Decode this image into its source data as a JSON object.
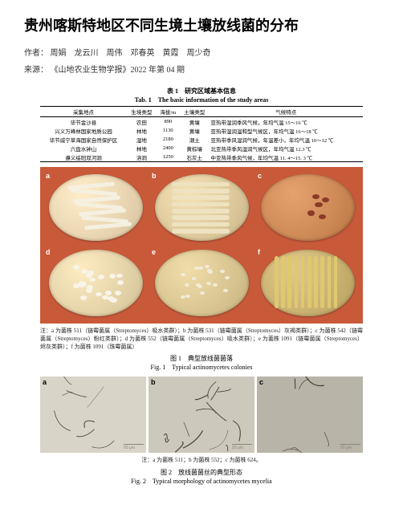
{
  "title": "贵州喀斯特地区不同生境土壤放线菌的分布",
  "authors_label": "作者：",
  "authors": "周娟　龙云川　周伟　邓春英　黄霞　周少奇",
  "source_label": "来源：",
  "source": "《山地农业生物学报》2022 年第 04 期",
  "table1": {
    "title_cn": "表 1　研究区域基本信息",
    "title_en": "Tab. 1　The basic information of the study areas",
    "headers": [
      "采集地点",
      "生境类型",
      "海拔/m",
      "土壤类型",
      "气候特点"
    ],
    "rows": [
      [
        "毕节金沙县",
        "农田",
        "890",
        "黄壤",
        "亚热带湿润季风气候，年均气温 15～16 ℃"
      ],
      [
        "兴义万峰林国家地质公园",
        "林地",
        "1130",
        "黄壤",
        "亚热带湿润温和型气候区，年均气温 16～18 ℃"
      ],
      [
        "毕节威宁草海国家自然保护区",
        "湿地",
        "2180",
        "潮土",
        "亚热带季风湿润气候，年温差小，年均气温 10～12 ℃"
      ],
      [
        "六盘水钟山",
        "林地",
        "2400",
        "黄棕壤",
        "北亚热带季风湿润气候区，年均气温 12.3 ℃"
      ],
      [
        "遵义绥阳双河洞",
        "溶洞",
        "1250",
        "石灰土",
        "中亚热带季风气候，年均气温 11. 4～15. 3 ℃"
      ]
    ]
  },
  "fig1": {
    "panels": [
      "a",
      "b",
      "c",
      "d",
      "e",
      "f"
    ],
    "dishes": [
      {
        "bg": "#e8d4b0",
        "pattern": "streak-white"
      },
      {
        "bg": "#dcc89a",
        "pattern": "streak-cream"
      },
      {
        "bg": "#cc8855",
        "pattern": "dots-red"
      },
      {
        "bg": "#e4d2a8",
        "pattern": "dots-white"
      },
      {
        "bg": "#d8c490",
        "pattern": "dots-small"
      },
      {
        "bg": "#c8b070",
        "pattern": "streak-yellow"
      }
    ],
    "note": "注：a 为菌株 511（链霉菌属（Streptomyces）吸水类群）；b 为菌株 531（链霉菌属（Streptomyces）灰褐类群）；c 为菌株 542（链霉菌属（Streptomyces）粉红类群）；d 为菌株 552（链霉菌属（Streptomyces）吸水类群）；e 为菌株 1091（链霉菌属（Streptomyces）烬灰类群）；f 为菌株 1091（珠霉菌属）",
    "title_cn": "图 1　典型放线菌菌落",
    "title_en": "Fig. 1　Typical actinomycetes colonies"
  },
  "fig2": {
    "panels": [
      "a",
      "b",
      "c"
    ],
    "scalebar": "50 μm",
    "note": "注：a 为菌株 511；b 为菌株 552；c 为菌株 624。",
    "title_cn": "图 2　放线菌菌丝的典型形态",
    "title_en": "Fig. 2　Typical morphology of actinomycetes mycelia"
  }
}
